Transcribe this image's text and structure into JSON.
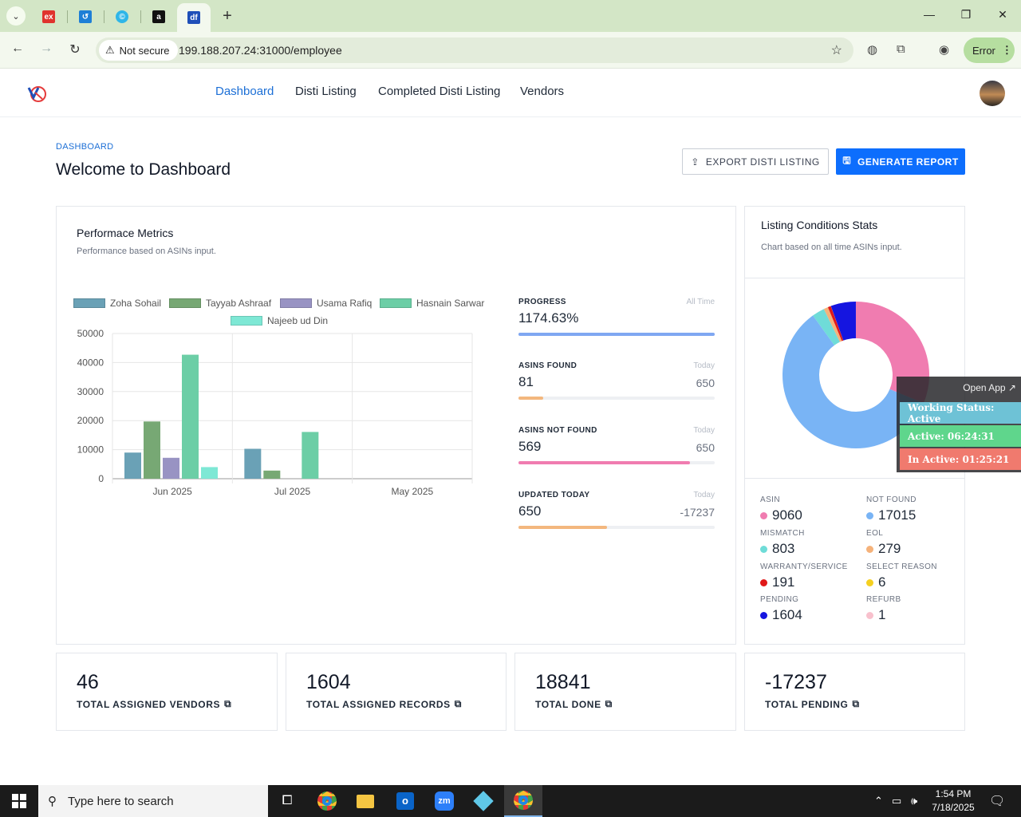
{
  "browser": {
    "url": "199.188.207.24:31000/employee",
    "security_label": "Not secure",
    "profile_button": "Error"
  },
  "nav": {
    "items": [
      "Dashboard",
      "Disti Listing",
      "Completed Disti Listing",
      "Vendors"
    ],
    "active": "Dashboard"
  },
  "page": {
    "breadcrumb": "DASHBOARD",
    "title": "Welcome to Dashboard",
    "export_button": "EXPORT DISTI LISTING",
    "generate_button": "GENERATE REPORT"
  },
  "metrics": {
    "title": "Performace Metrics",
    "subtitle": "Performance based on ASINs input."
  },
  "chart_data": {
    "type": "bar",
    "categories": [
      "Jun 2025",
      "Jul 2025",
      "May 2025"
    ],
    "ylim": [
      0,
      50000
    ],
    "yticks": [
      "50000",
      "40000",
      "30000",
      "20000",
      "10000",
      "0"
    ],
    "series": [
      {
        "name": "Zoha Sohail",
        "color": "#6aa1b6",
        "values": [
          9000,
          10300,
          0
        ]
      },
      {
        "name": "Tayyab Ashraaf",
        "color": "#77a874",
        "values": [
          19700,
          2800,
          0
        ]
      },
      {
        "name": "Usama Rafiq",
        "color": "#9893c3",
        "values": [
          7200,
          0,
          0
        ]
      },
      {
        "name": "Hasnain Sarwar",
        "color": "#6ccea6",
        "values": [
          42700,
          16100,
          0
        ]
      },
      {
        "name": "Najeeb ud Din",
        "color": "#7ee8d5",
        "values": [
          4000,
          0,
          0
        ]
      }
    ]
  },
  "progress": [
    {
      "label": "PROGRESS",
      "period": "All Time",
      "value": "1174.63%",
      "total": "",
      "fill": 1.0,
      "color": "#7fa7f2"
    },
    {
      "label": "ASINS FOUND",
      "period": "Today",
      "value": "81",
      "total": "650",
      "fill": 0.125,
      "color": "#f3b77e"
    },
    {
      "label": "ASINS NOT FOUND",
      "period": "Today",
      "value": "569",
      "total": "650",
      "fill": 0.875,
      "color": "#f07cb0"
    },
    {
      "label": "UPDATED TODAY",
      "period": "Today",
      "value": "650",
      "total": "-17237",
      "fill": 0.45,
      "color": "#f3b77e"
    }
  ],
  "conditions": {
    "title": "Listing Conditions Stats",
    "subtitle": "Chart based on all time ASINs input.",
    "items": [
      {
        "label": "ASIN",
        "value": "9060",
        "color": "#f07cb0"
      },
      {
        "label": "NOT FOUND",
        "value": "17015",
        "color": "#79b4f5"
      },
      {
        "label": "MISMATCH",
        "value": "803",
        "color": "#6fdcd8"
      },
      {
        "label": "EOL",
        "value": "279",
        "color": "#f5b27a"
      },
      {
        "label": "WARRANTY/SERVICE",
        "value": "191",
        "color": "#e01818"
      },
      {
        "label": "SELECT REASON",
        "value": "6",
        "color": "#f5d020"
      },
      {
        "label": "PENDING",
        "value": "1604",
        "color": "#1515e0"
      },
      {
        "label": "REFURB",
        "value": "1",
        "color": "#f8c1cd"
      }
    ]
  },
  "overlay": {
    "open_app": "Open App ↗",
    "status": "Working Status: Active",
    "active": "Active: 06:24:31",
    "inactive": "In Active: 01:25:21"
  },
  "summary": [
    {
      "value": "46",
      "label": "TOTAL ASSIGNED VENDORS",
      "color": "#e03a3a"
    },
    {
      "value": "1604",
      "label": "TOTAL ASSIGNED RECORDS",
      "color": "#1c6fd6"
    },
    {
      "value": "18841",
      "label": "TOTAL DONE",
      "color": "#1fa9c9"
    },
    {
      "value": "-17237",
      "label": "TOTAL PENDING",
      "color": "#e0287a"
    }
  ],
  "taskbar": {
    "search_placeholder": "Type here to search",
    "time": "1:54 PM",
    "date": "7/18/2025"
  }
}
